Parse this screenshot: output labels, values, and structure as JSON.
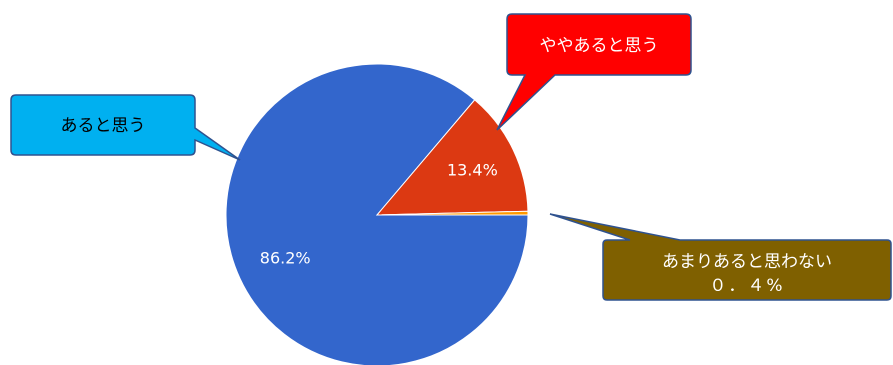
{
  "chart_data": {
    "type": "pie",
    "slices": [
      {
        "label": "あると思う",
        "value": 86.2,
        "value_label": "86.2%",
        "color": "#3366cc"
      },
      {
        "label": "ややあると思う",
        "value": 13.4,
        "value_label": "13.4%",
        "color": "#dc3912"
      },
      {
        "label": "あまりあると思わない",
        "value": 0.4,
        "value_label": "０．４%",
        "color": "#ff9900"
      }
    ],
    "callouts": [
      {
        "text": "あると思う",
        "fill": "#00b0f0",
        "text_color": "#000000"
      },
      {
        "text": "ややあると思う",
        "fill": "#ff0000",
        "text_color": "#ffffff"
      },
      {
        "text": "あまりあると思わない",
        "text2": "０．４%",
        "fill": "#7f6000",
        "text_color": "#ffffff"
      }
    ]
  }
}
